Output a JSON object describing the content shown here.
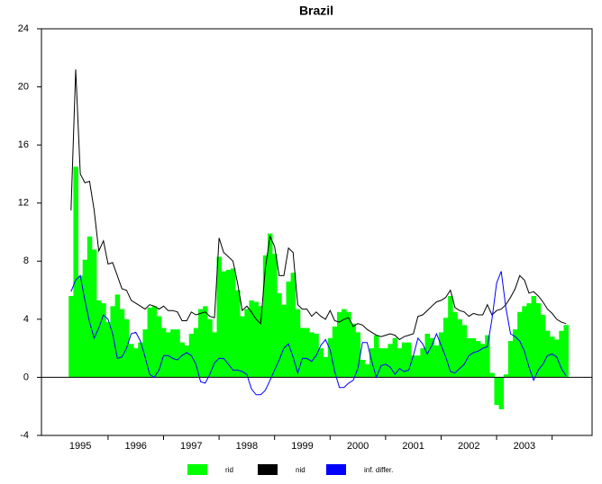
{
  "chart_data": {
    "type": "area_bar_line",
    "title": "Brazil",
    "x": [
      1995.333,
      1995.417,
      1995.5,
      1995.583,
      1995.667,
      1995.75,
      1995.833,
      1995.917,
      1996,
      1996.083,
      1996.167,
      1996.25,
      1996.333,
      1996.417,
      1996.5,
      1996.583,
      1996.667,
      1996.75,
      1996.833,
      1996.917,
      1997,
      1997.083,
      1997.167,
      1997.25,
      1997.333,
      1997.417,
      1997.5,
      1997.583,
      1997.667,
      1997.75,
      1997.833,
      1997.917,
      1998,
      1998.083,
      1998.167,
      1998.25,
      1998.333,
      1998.417,
      1998.5,
      1998.583,
      1998.667,
      1998.75,
      1998.833,
      1998.917,
      1999,
      1999.083,
      1999.167,
      1999.25,
      1999.333,
      1999.417,
      1999.5,
      1999.583,
      1999.667,
      1999.75,
      1999.833,
      1999.917,
      2000,
      2000.083,
      2000.167,
      2000.25,
      2000.333,
      2000.417,
      2000.5,
      2000.583,
      2000.667,
      2000.75,
      2000.833,
      2000.917,
      2001,
      2001.083,
      2001.167,
      2001.25,
      2001.333,
      2001.417,
      2001.5,
      2001.583,
      2001.667,
      2001.75,
      2001.833,
      2001.917,
      2002,
      2002.083,
      2002.167,
      2002.25,
      2002.333,
      2002.417,
      2002.5,
      2002.583,
      2002.667,
      2002.75,
      2002.833,
      2002.917,
      2003,
      2003.083,
      2003.167,
      2003.25,
      2003.333,
      2003.417,
      2003.5,
      2003.583,
      2003.667,
      2003.75,
      2003.833,
      2003.917,
      2004,
      2004.083,
      2004.167,
      2004.25
    ],
    "series": [
      {
        "name": "rid",
        "color": "#00ff00",
        "style": "bar",
        "values": [
          5.6,
          14.5,
          7.0,
          8.1,
          9.7,
          8.8,
          5.3,
          5.1,
          3.8,
          4.9,
          5.7,
          4.7,
          4.0,
          2.3,
          2.0,
          2.4,
          3.3,
          4.8,
          4.9,
          4.2,
          3.4,
          3.1,
          3.3,
          3.3,
          2.4,
          2.2,
          3.0,
          3.4,
          4.7,
          4.9,
          4.0,
          3.1,
          8.3,
          7.3,
          7.4,
          7.5,
          6.0,
          4.2,
          4.7,
          5.3,
          5.2,
          4.9,
          8.4,
          9.9,
          8.5,
          5.8,
          5.0,
          6.6,
          7.2,
          4.7,
          3.4,
          3.4,
          3.1,
          3.0,
          2.0,
          1.4,
          2.7,
          3.5,
          4.5,
          4.7,
          4.5,
          3.7,
          3.1,
          1.2,
          0.9,
          2.0,
          2.9,
          2.0,
          2.0,
          2.3,
          2.7,
          2.0,
          2.4,
          2.4,
          1.5,
          1.5,
          2.0,
          3.0,
          2.7,
          2.2,
          3.1,
          4.1,
          5.6,
          4.5,
          4.0,
          3.6,
          2.7,
          2.7,
          2.5,
          2.3,
          2.9,
          0.3,
          -1.9,
          -2.2,
          0.2,
          2.5,
          3.3,
          4.5,
          4.9,
          5.1,
          5.6,
          5.1,
          4.3,
          3.2,
          2.8,
          2.6,
          3.2,
          3.6
        ]
      },
      {
        "name": "nid",
        "color": "#000000",
        "style": "line",
        "values": [
          11.5,
          21.2,
          14,
          13.4,
          13.5,
          11.5,
          8.7,
          9.4,
          7.8,
          7.9,
          7.0,
          6.1,
          6.0,
          5.3,
          5.1,
          4.9,
          4.7,
          5.0,
          4.9,
          4.7,
          4.9,
          4.6,
          4.6,
          4.5,
          3.9,
          3.9,
          4.5,
          4.3,
          4.4,
          4.5,
          4.2,
          4.1,
          9.6,
          8.6,
          8.3,
          8.0,
          6.5,
          4.6,
          4.9,
          4.5,
          4.0,
          3.7,
          7.5,
          9.7,
          9.0,
          7.0,
          7.0,
          8.9,
          8.6,
          5.0,
          4.7,
          4.7,
          4.2,
          4.5,
          4.2,
          4.0,
          4.6,
          3.9,
          3.8,
          4.0,
          4.1,
          3.5,
          3.7,
          3.6,
          3.3,
          3.1,
          2.9,
          2.8,
          2.9,
          3.0,
          2.9,
          2.6,
          2.8,
          2.9,
          3.0,
          4.2,
          4.3,
          4.6,
          4.9,
          5.2,
          5.3,
          5.5,
          6.0,
          4.8,
          4.6,
          4.5,
          4.2,
          4.4,
          4.3,
          4.3,
          5.0,
          4.3,
          4.6,
          4.7,
          5.0,
          5.5,
          6.1,
          7.0,
          6.7,
          5.8,
          5.9,
          5.6,
          5.2,
          4.7,
          4.4,
          4.0,
          3.8,
          3.7
        ]
      },
      {
        "name": "inf. differ.",
        "color": "#0000ff",
        "style": "line",
        "values": [
          5.9,
          6.7,
          7.0,
          5.3,
          3.8,
          2.7,
          3.4,
          4.3,
          4.0,
          3.0,
          1.3,
          1.4,
          2.0,
          3.0,
          3.1,
          2.5,
          1.4,
          0.2,
          0.0,
          0.5,
          1.5,
          1.5,
          1.3,
          1.2,
          1.5,
          1.7,
          1.5,
          0.9,
          -0.3,
          -0.4,
          0.2,
          1.0,
          1.3,
          1.3,
          0.9,
          0.5,
          0.5,
          0.4,
          0.2,
          -0.8,
          -1.2,
          -1.2,
          -0.9,
          -0.2,
          0.5,
          1.2,
          2.0,
          2.3,
          1.4,
          0.3,
          1.3,
          1.3,
          1.1,
          1.5,
          2.2,
          2.6,
          1.9,
          0.4,
          -0.7,
          -0.7,
          -0.4,
          -0.2,
          0.6,
          2.4,
          2.4,
          1.1,
          0.0,
          0.8,
          0.9,
          0.7,
          0.2,
          0.6,
          0.4,
          0.5,
          1.5,
          2.7,
          2.3,
          1.6,
          2.2,
          3.0,
          2.2,
          1.4,
          0.4,
          0.3,
          0.6,
          0.9,
          1.5,
          1.7,
          1.8,
          2.0,
          2.1,
          4.0,
          6.5,
          7.3,
          4.8,
          3.0,
          2.8,
          2.5,
          1.8,
          0.7,
          -0.2,
          0.5,
          0.9,
          1.5,
          1.6,
          1.4,
          0.6,
          0.1
        ]
      }
    ],
    "xlim": [
      1994.8,
      2004.72
    ],
    "xticks": [
      {
        "value": 1995.5,
        "label": "1995"
      },
      {
        "value": 1996.5,
        "label": "1996"
      },
      {
        "value": 1997.5,
        "label": "1997"
      },
      {
        "value": 1998.5,
        "label": "1998"
      },
      {
        "value": 1999.5,
        "label": "1999"
      },
      {
        "value": 2000.5,
        "label": "2000"
      },
      {
        "value": 2001.5,
        "label": "2001"
      },
      {
        "value": 2002.5,
        "label": "2002"
      },
      {
        "value": 2003.5,
        "label": "2003"
      }
    ],
    "ylim": [
      -4,
      24
    ],
    "yticks": [
      -4,
      0,
      4,
      8,
      12,
      16,
      20,
      24
    ],
    "legend": "bottom"
  }
}
